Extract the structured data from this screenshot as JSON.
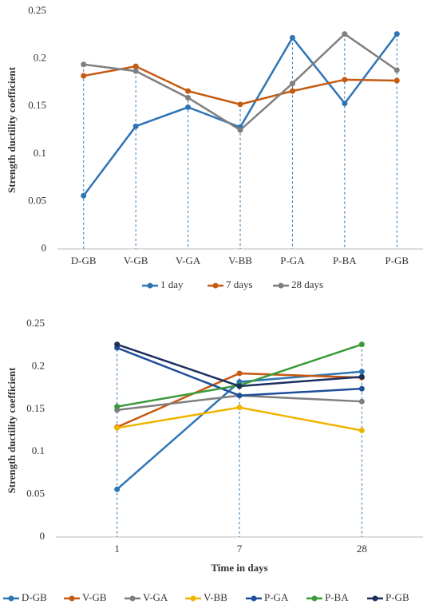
{
  "chart_data": [
    {
      "type": "line",
      "y_label": "Strength ductility coefficient",
      "categories": [
        "D-GB",
        "V-GB",
        "V-GA",
        "V-BB",
        "P-GA",
        "P-BA",
        "P-GB"
      ],
      "series": [
        {
          "name": "1 day",
          "color": "#2e75b6",
          "values": [
            0.056,
            0.129,
            0.149,
            0.128,
            0.222,
            0.153,
            0.226
          ]
        },
        {
          "name": "7 days",
          "color": "#c55a11",
          "values": [
            0.182,
            0.192,
            0.166,
            0.152,
            0.166,
            0.178,
            0.177
          ]
        },
        {
          "name": "28 days",
          "color": "#7f7f7f",
          "values": [
            0.194,
            0.187,
            0.159,
            0.125,
            0.174,
            0.226,
            0.188
          ]
        }
      ],
      "ylim": [
        0,
        0.25
      ],
      "yticks": [
        0,
        0.05,
        0.1,
        0.15,
        0.2,
        0.25
      ],
      "drop_lines": true,
      "legend": "bottom"
    },
    {
      "type": "line",
      "y_label": "Strength ductility coefficient",
      "x_label": "Time in days",
      "categories": [
        "1",
        "7",
        "28"
      ],
      "series": [
        {
          "name": "D-GB",
          "color": "#2e75b6",
          "values": [
            0.056,
            0.182,
            0.194
          ]
        },
        {
          "name": "V-GB",
          "color": "#c55a11",
          "values": [
            0.129,
            0.192,
            0.187
          ]
        },
        {
          "name": "V-GA",
          "color": "#7f7f7f",
          "values": [
            0.149,
            0.166,
            0.159
          ]
        },
        {
          "name": "V-BB",
          "color": "#f0b400",
          "values": [
            0.128,
            0.152,
            0.125
          ]
        },
        {
          "name": "P-GA",
          "color": "#1f4e9a",
          "values": [
            0.222,
            0.166,
            0.174
          ]
        },
        {
          "name": "P-BA",
          "color": "#3a9a3a",
          "values": [
            0.153,
            0.178,
            0.226
          ]
        },
        {
          "name": "P-GB",
          "color": "#1c2f5e",
          "values": [
            0.226,
            0.177,
            0.188
          ]
        }
      ],
      "ylim": [
        0,
        0.25
      ],
      "yticks": [
        0,
        0.05,
        0.1,
        0.15,
        0.2,
        0.25
      ],
      "drop_lines": true,
      "legend": "bottom"
    }
  ]
}
